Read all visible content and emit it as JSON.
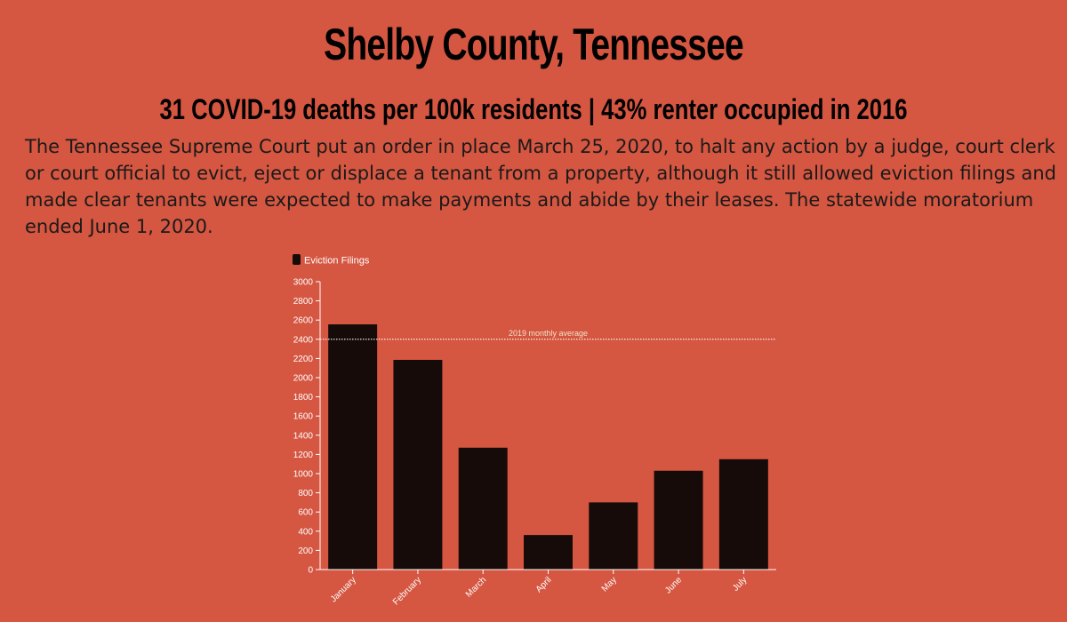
{
  "header": {
    "title": "Shelby County, Tennessee",
    "subtitle": "31 COVID-19 deaths per 100k residents | 43% renter occupied in 2016",
    "description": "The Tennessee Supreme Court put an order in place March 25, 2020, to halt any action by a judge, court clerk or court official to evict, eject or displace a tenant from a property, although it still allowed eviction filings and made clear tenants were expected to make payments and abide by their leases. The statewide moratorium ended June 1, 2020."
  },
  "colors": {
    "background": "#d55641",
    "bar": "#160b08",
    "axis": "#ffffff",
    "average_line": "#ffffff"
  },
  "chart_data": {
    "type": "bar",
    "categories": [
      "January",
      "February",
      "March",
      "April",
      "May",
      "June",
      "July"
    ],
    "series": [
      {
        "name": "Eviction Filings",
        "values": [
          2555,
          2185,
          1270,
          360,
          700,
          1030,
          1150
        ]
      }
    ],
    "reference_line": {
      "label": "2019 monthly average",
      "value": 2400
    },
    "ylim": [
      0,
      3000
    ],
    "yticks": [
      0,
      200,
      400,
      600,
      800,
      1000,
      1200,
      1400,
      1600,
      1800,
      2000,
      2200,
      2400,
      2600,
      2800,
      3000
    ],
    "legend_position": "top-left",
    "grid": false,
    "xlabel": "",
    "ylabel": ""
  }
}
